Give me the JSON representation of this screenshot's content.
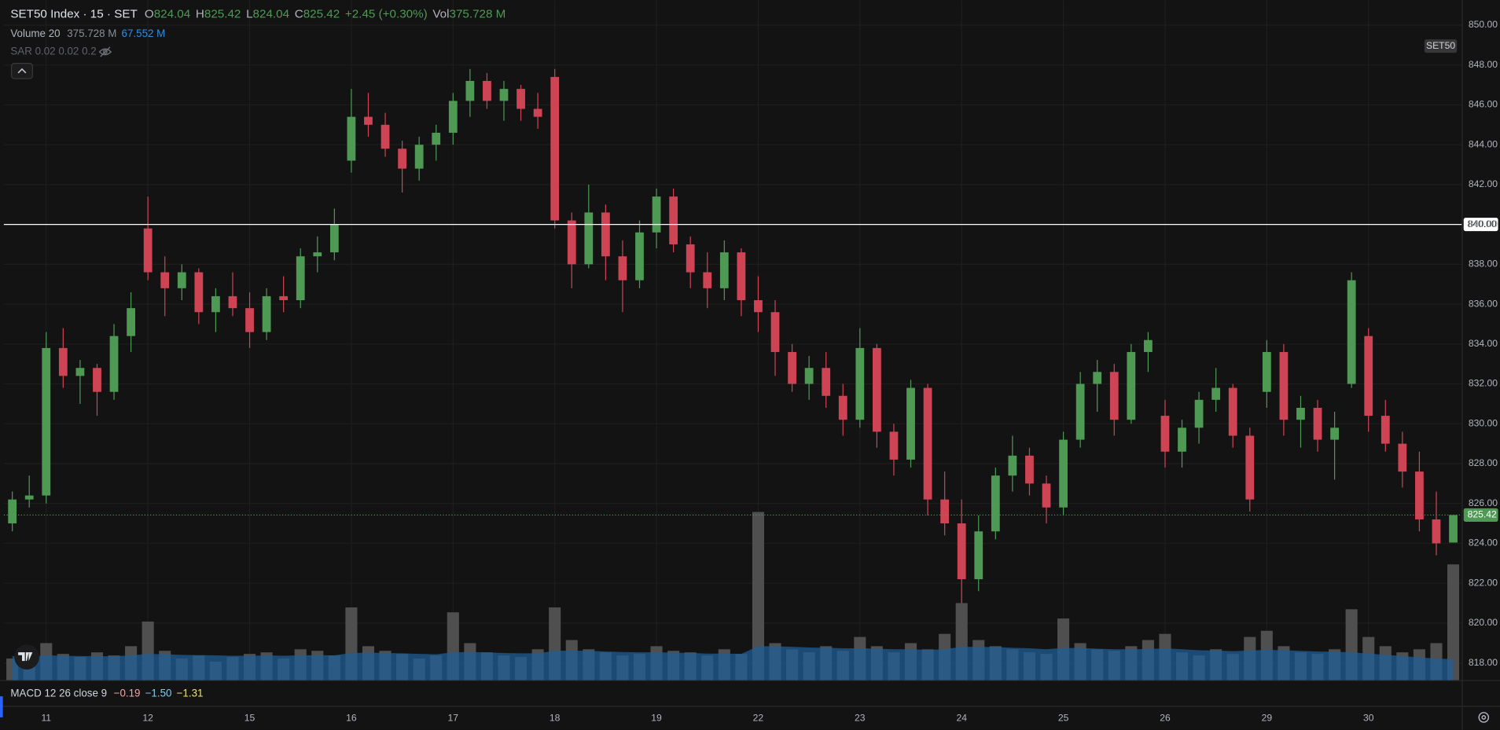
{
  "chart_data": {
    "type": "candlestick",
    "categories": [
      null,
      null,
      "11",
      null,
      null,
      null,
      null,
      null,
      "12",
      null,
      null,
      null,
      null,
      null,
      "15",
      null,
      null,
      null,
      null,
      null,
      "16",
      null,
      null,
      null,
      null,
      null,
      "17",
      null,
      null,
      null,
      null,
      null,
      "18",
      null,
      null,
      null,
      null,
      null,
      "19",
      null,
      null,
      null,
      null,
      null,
      "22",
      null,
      null,
      null,
      null,
      null,
      "23",
      null,
      null,
      null,
      null,
      null,
      "24",
      null,
      null,
      null,
      null,
      null,
      "25",
      null,
      null,
      null,
      null,
      null,
      "26",
      null,
      null,
      null,
      null,
      null,
      "29",
      null,
      null,
      null,
      null,
      null,
      "30",
      null,
      null,
      null,
      null,
      null
    ],
    "open": [
      825.0,
      826.2,
      826.4,
      833.8,
      832.4,
      832.8,
      831.6,
      834.4,
      839.8,
      837.6,
      836.8,
      837.6,
      835.6,
      836.4,
      835.8,
      834.6,
      836.4,
      836.2,
      838.4,
      838.6,
      843.2,
      845.4,
      845.0,
      843.8,
      842.8,
      844.0,
      844.6,
      846.2,
      847.2,
      846.2,
      846.8,
      845.8,
      847.4,
      840.2,
      838.0,
      840.6,
      838.4,
      837.2,
      839.6,
      841.4,
      839.0,
      837.6,
      836.8,
      838.6,
      836.2,
      835.6,
      833.6,
      832.0,
      832.8,
      831.4,
      830.2,
      833.8,
      829.6,
      828.2,
      831.8,
      826.2,
      825.0,
      822.2,
      824.6,
      827.4,
      828.4,
      827.0,
      825.8,
      829.2,
      832.0,
      832.6,
      830.2,
      833.6,
      830.4,
      828.6,
      829.8,
      831.2,
      831.8,
      829.4,
      831.6,
      833.6,
      830.2,
      830.8,
      829.2,
      832.0,
      834.4,
      830.4,
      829.0,
      827.6,
      825.2,
      824.04
    ],
    "high": [
      826.6,
      827.4,
      834.6,
      834.8,
      833.2,
      833.0,
      835.0,
      836.6,
      841.4,
      838.4,
      838.0,
      837.8,
      836.8,
      837.6,
      836.6,
      836.8,
      837.4,
      838.8,
      839.4,
      840.8,
      846.8,
      846.6,
      845.6,
      844.2,
      844.4,
      845.0,
      846.6,
      847.8,
      847.6,
      847.2,
      847.0,
      846.6,
      847.8,
      840.6,
      842.0,
      841.0,
      839.2,
      840.2,
      841.8,
      841.8,
      839.4,
      838.6,
      839.2,
      838.8,
      837.4,
      836.2,
      834.0,
      833.4,
      833.6,
      832.0,
      834.8,
      834.0,
      830.0,
      832.2,
      832.0,
      827.6,
      826.2,
      825.4,
      827.8,
      829.4,
      828.8,
      827.4,
      829.6,
      832.6,
      833.2,
      833.0,
      834.0,
      834.6,
      831.2,
      830.2,
      831.6,
      832.8,
      832.0,
      829.8,
      834.2,
      834.0,
      831.4,
      831.2,
      830.6,
      837.6,
      834.8,
      831.2,
      829.6,
      828.6,
      826.6,
      825.42
    ],
    "low": [
      824.6,
      825.8,
      826.0,
      831.8,
      831.0,
      830.4,
      831.2,
      833.6,
      837.2,
      835.4,
      836.2,
      835.0,
      834.6,
      835.4,
      833.8,
      834.2,
      835.6,
      835.8,
      837.6,
      838.2,
      842.6,
      844.4,
      843.4,
      841.6,
      842.2,
      843.2,
      844.0,
      845.4,
      845.8,
      845.2,
      845.2,
      844.8,
      839.8,
      836.8,
      837.8,
      837.2,
      835.6,
      836.8,
      838.8,
      838.6,
      836.8,
      835.8,
      836.2,
      835.4,
      834.6,
      832.4,
      831.6,
      831.2,
      830.8,
      829.4,
      829.8,
      828.8,
      827.4,
      827.8,
      825.4,
      824.4,
      821.0,
      821.6,
      824.2,
      826.6,
      826.4,
      825.0,
      825.4,
      828.8,
      830.6,
      829.4,
      830.0,
      832.6,
      827.8,
      827.8,
      829.0,
      830.6,
      828.8,
      825.6,
      830.8,
      829.4,
      828.8,
      828.6,
      827.2,
      831.8,
      829.6,
      828.6,
      826.8,
      824.6,
      823.4,
      824.04
    ],
    "close": [
      826.2,
      826.4,
      833.8,
      832.4,
      832.8,
      831.6,
      834.4,
      835.8,
      837.6,
      836.8,
      837.6,
      835.6,
      836.4,
      835.8,
      834.6,
      836.4,
      836.2,
      838.4,
      838.6,
      840.0,
      845.4,
      845.0,
      843.8,
      842.8,
      844.0,
      844.6,
      846.2,
      847.2,
      846.2,
      846.8,
      845.8,
      845.4,
      840.2,
      838.0,
      840.6,
      838.4,
      837.2,
      839.6,
      841.4,
      839.0,
      837.6,
      836.8,
      838.6,
      836.2,
      835.6,
      833.6,
      832.0,
      832.8,
      831.4,
      830.2,
      833.8,
      829.6,
      828.2,
      831.8,
      826.2,
      825.0,
      822.2,
      824.6,
      827.4,
      828.4,
      827.0,
      825.8,
      829.2,
      832.0,
      832.6,
      830.2,
      833.6,
      834.2,
      828.6,
      829.8,
      831.2,
      831.8,
      829.4,
      826.2,
      833.6,
      830.2,
      830.8,
      829.2,
      829.8,
      837.2,
      830.4,
      829.0,
      827.6,
      825.2,
      824.0,
      825.42
    ],
    "volume": [
      70,
      62,
      120,
      85,
      75,
      90,
      80,
      110,
      190,
      95,
      70,
      80,
      60,
      75,
      85,
      90,
      70,
      100,
      95,
      80,
      236,
      110,
      95,
      85,
      70,
      80,
      220,
      120,
      90,
      80,
      75,
      100,
      236,
      130,
      100,
      90,
      80,
      85,
      110,
      95,
      90,
      80,
      100,
      85,
      546,
      120,
      100,
      90,
      110,
      95,
      140,
      110,
      90,
      120,
      100,
      150,
      250,
      130,
      110,
      100,
      90,
      85,
      200,
      120,
      100,
      95,
      110,
      130,
      150,
      90,
      80,
      100,
      85,
      140,
      160,
      110,
      90,
      85,
      100,
      230,
      140,
      110,
      90,
      100,
      120,
      375.728
    ],
    "volume_ma": [
      78,
      76,
      80,
      79,
      78,
      78,
      77,
      80,
      85,
      84,
      82,
      81,
      80,
      79,
      79,
      80,
      79,
      80,
      81,
      80,
      88,
      89,
      88,
      87,
      85,
      84,
      90,
      91,
      90,
      88,
      87,
      87,
      95,
      96,
      95,
      93,
      91,
      90,
      90,
      89,
      88,
      86,
      86,
      85,
      110,
      110,
      108,
      106,
      105,
      103,
      103,
      102,
      100,
      100,
      98,
      100,
      108,
      108,
      107,
      105,
      103,
      100,
      104,
      104,
      102,
      100,
      100,
      101,
      103,
      100,
      97,
      96,
      94,
      96,
      98,
      97,
      95,
      93,
      92,
      90,
      86,
      82,
      78,
      74,
      70,
      67.552
    ],
    "up_color": "#4e9a55",
    "down_color": "#cf4455",
    "volume_color": "#4f4f4f",
    "volume_ma_color": "#1f5e96",
    "ylim": [
      817.14,
      851.25
    ],
    "vlim": [
      0,
      2208
    ],
    "yticks": [
      {
        "value": 818,
        "label": "818.00"
      },
      {
        "value": 820,
        "label": "820.00"
      },
      {
        "value": 822,
        "label": "822.00"
      },
      {
        "value": 824,
        "label": "824.00"
      },
      {
        "value": 826,
        "label": "826.00"
      },
      {
        "value": 828,
        "label": "828.00"
      },
      {
        "value": 830,
        "label": "830.00"
      },
      {
        "value": 832,
        "label": "832.00"
      },
      {
        "value": 834,
        "label": "834.00"
      },
      {
        "value": 836,
        "label": "836.00"
      },
      {
        "value": 838,
        "label": "838.00"
      },
      {
        "value": 840,
        "label": "840.00"
      },
      {
        "value": 842,
        "label": "842.00"
      },
      {
        "value": 844,
        "label": "844.00"
      },
      {
        "value": 846,
        "label": "846.00"
      },
      {
        "value": 848,
        "label": "848.00"
      },
      {
        "value": 850,
        "label": "850.00"
      }
    ],
    "hline": {
      "value": 840,
      "label": "840.00",
      "color": "#ffffff"
    },
    "symbol_tag": "SET50",
    "grid": true
  },
  "header": {
    "symbol": "SET50 Index · 15 · SET",
    "open_label": "O",
    "high_label": "H",
    "low_label": "L",
    "close_label": "C",
    "change": "+2.45 (+0.30%)",
    "volume_label": "Vol",
    "volume_value": "375.728 M"
  },
  "indicators": {
    "volume_name": "Volume 20",
    "volume_value": "375.728 M",
    "volume_ma_value": "67.552 M",
    "sar": "SAR 0.02 0.02 0.2",
    "macd_name": "MACD 12 26 close 9",
    "macd_values": [
      "−0.19",
      "−1.50",
      "−1.31"
    ]
  }
}
